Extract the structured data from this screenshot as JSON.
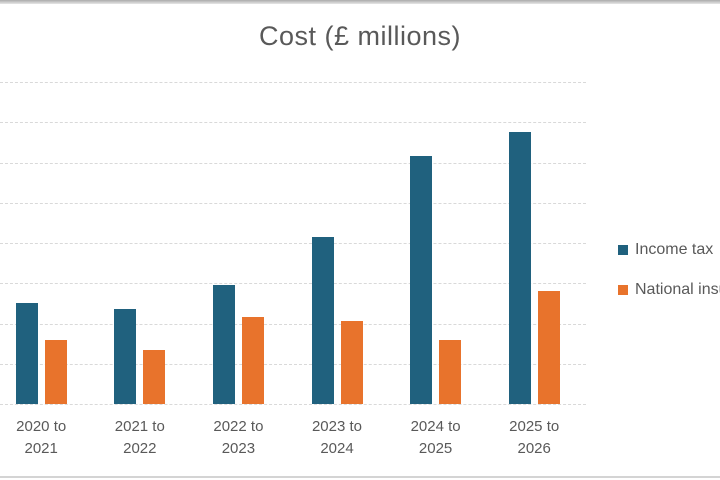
{
  "chart_data": {
    "type": "bar",
    "title": "Cost (£ millions)",
    "categories": [
      "2020 to 2021",
      "2021 to 2022",
      "2022 to 2023",
      "2023 to 2024",
      "2024 to 2025",
      "2025 to 2026"
    ],
    "series": [
      {
        "name": "Income tax",
        "color": "#20617E",
        "values": [
          2.5,
          2.35,
          2.95,
          4.15,
          6.15,
          6.75
        ]
      },
      {
        "name": "National insurance",
        "color": "#E8732C",
        "values": [
          1.6,
          1.35,
          2.15,
          2.05,
          1.6,
          2.8
        ]
      }
    ],
    "xlabel": "",
    "ylabel": "",
    "ylim": [
      0,
      8
    ],
    "gridline_step": 1,
    "y_tick_labels": [],
    "grid": true,
    "legend_position": "right"
  },
  "colors": {
    "title_text": "#595959",
    "axis_text": "#595959",
    "gridline": "#D9D9D9",
    "background": "#FFFFFF",
    "top_border": "#ABABAB",
    "bottom_border": "#D4D4D4"
  }
}
